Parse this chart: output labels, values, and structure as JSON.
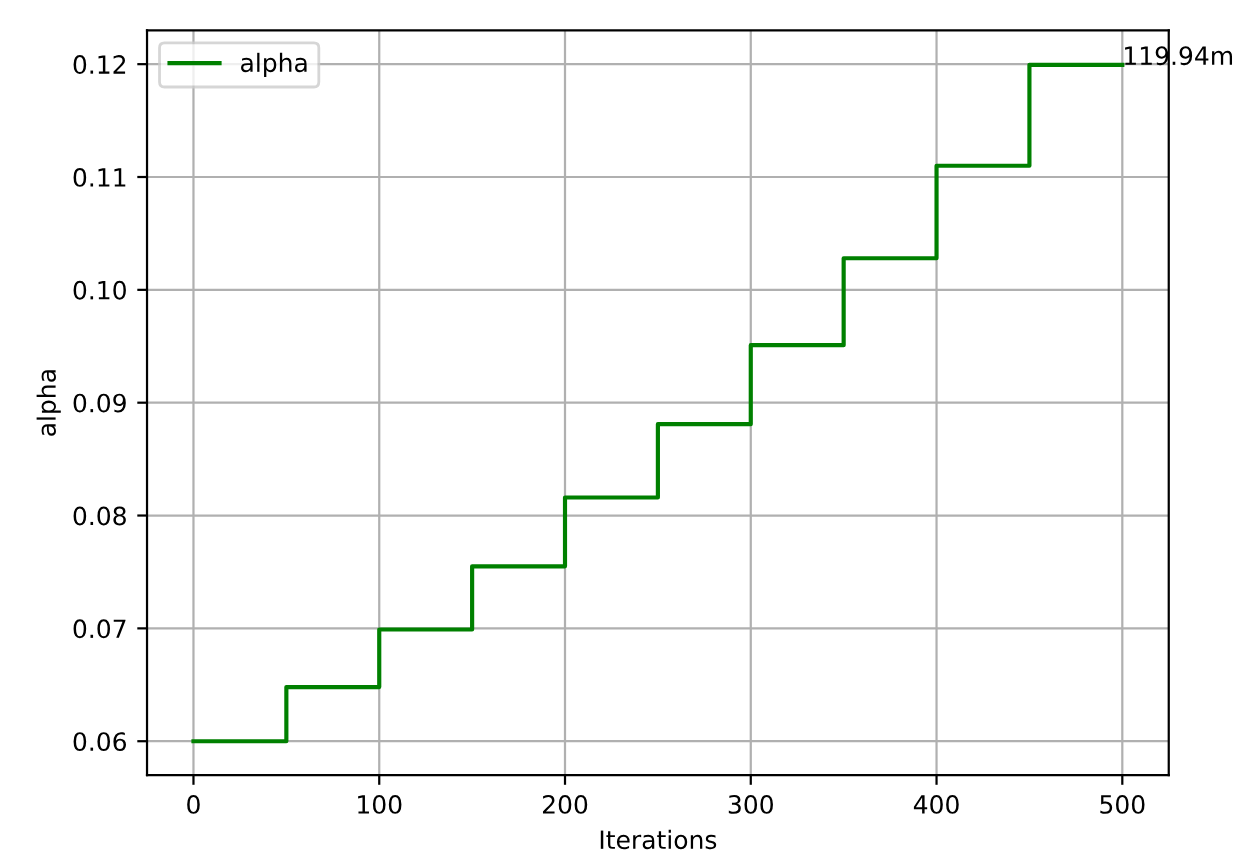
{
  "chart_data": {
    "type": "step",
    "xlabel": "Iterations",
    "ylabel": "alpha",
    "x": [
      0,
      50,
      100,
      150,
      200,
      250,
      300,
      350,
      400,
      450,
      500
    ],
    "series": [
      {
        "name": "alpha",
        "color": "#008000",
        "values": [
          0.06,
          0.0648,
          0.0699,
          0.0755,
          0.0816,
          0.0881,
          0.0951,
          0.1028,
          0.111,
          0.11994,
          0.11994
        ]
      }
    ],
    "annotations": [
      {
        "text": "119.94m",
        "x": 500,
        "y": 0.11994
      }
    ],
    "xlim": [
      -25,
      525
    ],
    "xticks": [
      0,
      100,
      200,
      300,
      400,
      500
    ],
    "ylim": [
      0.057,
      0.123
    ],
    "yticks": [
      {
        "value": 0.06,
        "label": "0.06"
      },
      {
        "value": 0.07,
        "label": "0.07"
      },
      {
        "value": 0.08,
        "label": "0.08"
      },
      {
        "value": 0.09,
        "label": "0.09"
      },
      {
        "value": 0.1,
        "label": "0.10"
      },
      {
        "value": 0.11,
        "label": "0.11"
      },
      {
        "value": 0.12,
        "label": "0.12"
      }
    ],
    "grid": true,
    "legend": "top left",
    "marker": "none",
    "line_style": "solid"
  }
}
